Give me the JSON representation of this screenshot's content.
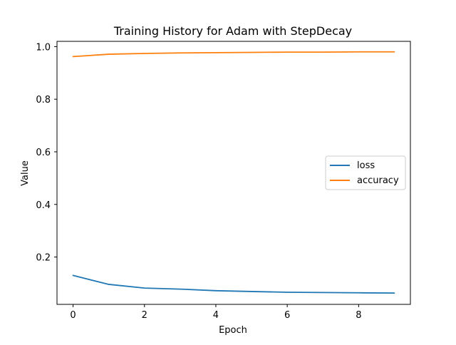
{
  "chart_data": {
    "type": "line",
    "title": "Training History for Adam with StepDecay",
    "xlabel": "Epoch",
    "ylabel": "Value",
    "x": [
      0,
      1,
      2,
      3,
      4,
      5,
      6,
      7,
      8,
      9
    ],
    "xlim": [
      -0.45,
      9.45
    ],
    "ylim": [
      0.02,
      1.02
    ],
    "xticks": [
      0,
      2,
      4,
      6,
      8
    ],
    "yticks": [
      0.2,
      0.4,
      0.6,
      0.8,
      1.0
    ],
    "xtick_labels": [
      "0",
      "2",
      "4",
      "6",
      "8"
    ],
    "ytick_labels": [
      "0.2",
      "0.4",
      "0.6",
      "0.8",
      "1.0"
    ],
    "grid": false,
    "legend_position": "center-right",
    "series": [
      {
        "name": "loss",
        "color": "#1f77b4",
        "values": [
          0.13,
          0.096,
          0.082,
          0.078,
          0.072,
          0.069,
          0.066,
          0.065,
          0.064,
          0.063
        ]
      },
      {
        "name": "accuracy",
        "color": "#ff7f0e",
        "values": [
          0.962,
          0.971,
          0.974,
          0.976,
          0.977,
          0.978,
          0.979,
          0.979,
          0.98,
          0.98
        ]
      }
    ]
  }
}
